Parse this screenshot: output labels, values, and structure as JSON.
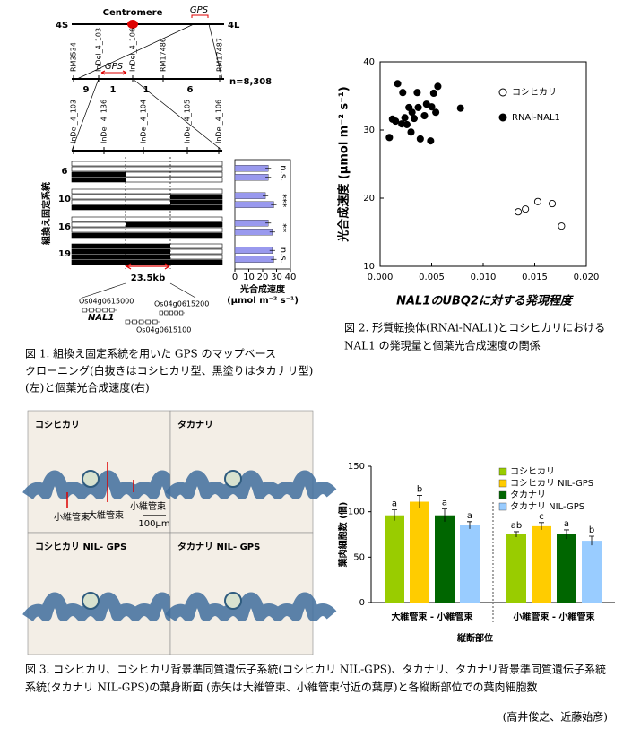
{
  "chart_data": [
    {
      "type": "scatter",
      "x_label": "NAL1のUBQ2に対する発現程度",
      "y_label": "光合成速度 (μmol m⁻² s⁻¹)",
      "xlim": [
        0,
        0.02
      ],
      "xticks": [
        {
          "value": 0,
          "label": "0.000"
        },
        {
          "value": 0.005,
          "label": "0.005"
        },
        {
          "value": 0.01,
          "label": "0.010"
        },
        {
          "value": 0.015,
          "label": "0.015"
        },
        {
          "value": 0.02,
          "label": "0.020"
        }
      ],
      "ylim": [
        10,
        40
      ],
      "yticks": [
        10,
        20,
        30,
        40
      ],
      "legend_position": "upper right",
      "series": [
        {
          "name": "コシヒカリ",
          "marker": "open",
          "color": "#000000",
          "x": [
            0.0134,
            0.0141,
            0.0153,
            0.0167,
            0.0176
          ],
          "values": [
            18.0,
            18.4,
            19.5,
            19.2,
            15.9
          ]
        },
        {
          "name": "RNAi-NAL1",
          "marker": "filled",
          "color": "#000000",
          "x": [
            0.0009,
            0.0012,
            0.0015,
            0.0017,
            0.0021,
            0.0022,
            0.0024,
            0.0026,
            0.0028,
            0.003,
            0.0031,
            0.0033,
            0.0036,
            0.0037,
            0.0039,
            0.0043,
            0.0045,
            0.0049,
            0.005,
            0.0052,
            0.0054,
            0.0056,
            0.0078
          ],
          "values": [
            28.9,
            31.6,
            31.3,
            36.8,
            30.9,
            35.5,
            31.8,
            30.8,
            33.3,
            29.7,
            32.6,
            31.7,
            35.5,
            33.3,
            28.7,
            32.1,
            33.8,
            28.4,
            33.4,
            35.4,
            32.6,
            36.4,
            33.2
          ]
        }
      ]
    },
    {
      "type": "bar",
      "x_label": "縦断部位",
      "y_label": "葉肉細胞数 (個)",
      "categories": [
        "大維管束 - 小維管束",
        "小維管束 - 小維管束"
      ],
      "ylim": [
        0,
        150
      ],
      "yticks": [
        0,
        50,
        100,
        150
      ],
      "legend_position": "upper right",
      "series": [
        {
          "name": "コシヒカリ",
          "color": "#99cc00",
          "values": [
            96,
            75
          ],
          "errors": [
            6,
            3
          ],
          "letters": [
            "a",
            "ab"
          ]
        },
        {
          "name": "コシヒカリ NIL-GPS",
          "color": "#ffcc00",
          "values": [
            111,
            84
          ],
          "errors": [
            7,
            4
          ],
          "letters": [
            "b",
            "c"
          ]
        },
        {
          "name": "タカナリ",
          "color": "#006600",
          "values": [
            96,
            75
          ],
          "errors": [
            7,
            5
          ],
          "letters": [
            "a",
            "a"
          ]
        },
        {
          "name": "タカナリ NIL-GPS",
          "color": "#99ccff",
          "values": [
            85,
            68
          ],
          "errors": [
            4,
            5
          ],
          "letters": [
            "a",
            "b"
          ]
        }
      ]
    },
    {
      "type": "barh",
      "x_label": [
        "光合成速度",
        "(μmol m⁻² s⁻¹)"
      ],
      "categories": [
        "6",
        "10",
        "16",
        "19"
      ],
      "xlim": [
        0,
        40
      ],
      "xticks": [
        0,
        10,
        20,
        30,
        40
      ],
      "significance": [
        "n.s.",
        "***",
        "**",
        "n.s."
      ],
      "series": [
        {
          "color": "#9999ee",
          "values": [
            24,
            22,
            24,
            27
          ],
          "errors": [
            2,
            2,
            2,
            2
          ]
        },
        {
          "color": "#9999ee",
          "values": [
            24,
            28,
            27,
            28
          ],
          "errors": [
            2,
            2,
            2,
            2
          ]
        }
      ]
    }
  ],
  "figure1": {
    "chromosome_arms": [
      "4S",
      "4L"
    ],
    "centromere": "Centromere",
    "locus": "GPS",
    "markers_coarse": [
      "RM3534",
      "InDel_4_103",
      "InDel_4_106",
      "RM17486",
      "RM17487"
    ],
    "recombinants": [
      "9",
      "1",
      "1",
      "6"
    ],
    "population": "n=8,308",
    "markers_fine": [
      "InDel_4_103",
      "InDel_4_136",
      "InDel_4_104",
      "InDel_4_105",
      "InDel_4_106"
    ],
    "lines_label": "組換え固定系統",
    "interval": "23.5kb",
    "genes": [
      "Os04g0615000",
      "Os04g0615200",
      "NAL1",
      "Os04g0615100"
    ]
  },
  "figure3_panels": {
    "labels": [
      "コシヒカリ",
      "タカナリ",
      "コシヒカリ NIL- GPS",
      "タカナリ NIL- GPS"
    ],
    "annotations": [
      "小維管束",
      "大維管束",
      "小維管束"
    ],
    "scale_bar": "100μm"
  },
  "captions": {
    "figure1": [
      "図 1. 組換え固定系統を用いた GPS のマップベース",
      "クローニング(白抜きはコシヒカリ型、黒塗りはタカナリ型)",
      "(左)と個葉光合成速度(右)"
    ],
    "figure2": [
      "図 2. 形質転換体(RNAi-NAL1)とコシヒカリにおける",
      "NAL1 の発現量と個葉光合成速度の関係"
    ],
    "figure3": [
      "図 3. コシヒカリ、コシヒカリ背景準同質遺伝子系統(コシヒカリ NIL-GPS)、タカナリ、タカナリ背景準同質遺伝子系統",
      "系統(タカナリ NIL-GPS)の葉身断面 (赤矢は大維管束、小維管束付近の葉厚)と各縦断部位での葉肉細胞数"
    ]
  },
  "authors": "(高井俊之、近藤始彦)"
}
